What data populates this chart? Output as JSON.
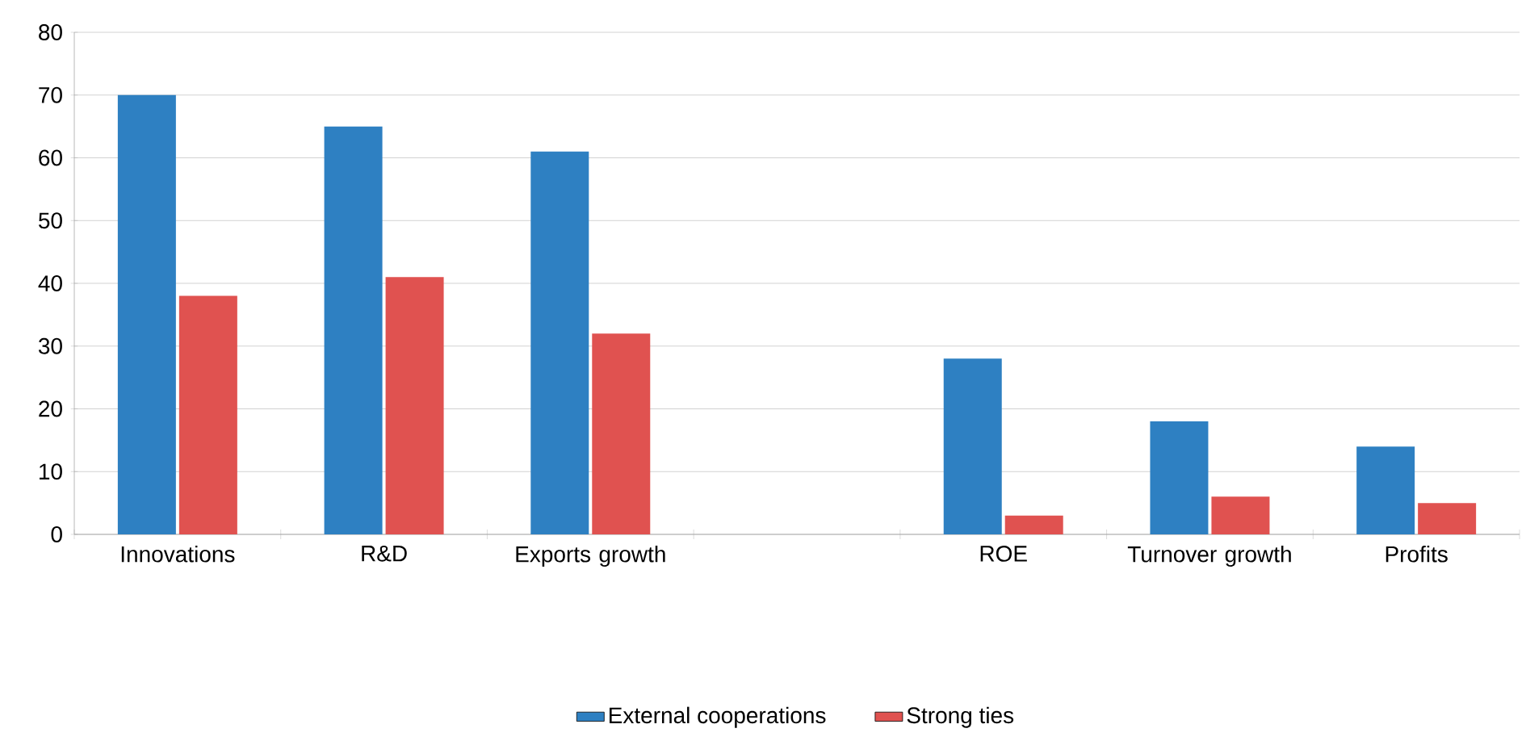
{
  "chart_data": {
    "type": "bar",
    "categories": [
      "Innovations",
      "R&D",
      "Exports growth",
      null,
      "ROE",
      "Turnover growth",
      "Profits"
    ],
    "series": [
      {
        "name": "External cooperations",
        "color": "#2e80c2",
        "values": [
          70,
          65,
          61,
          null,
          28,
          18,
          14
        ]
      },
      {
        "name": "Strong ties",
        "color": "#e05250",
        "values": [
          38,
          41,
          32,
          null,
          3,
          6,
          5
        ]
      }
    ],
    "ylim": [
      0,
      80
    ],
    "yticks": [
      0,
      10,
      20,
      30,
      40,
      50,
      60,
      70,
      80
    ],
    "grid": "y",
    "legend": "bottom"
  }
}
